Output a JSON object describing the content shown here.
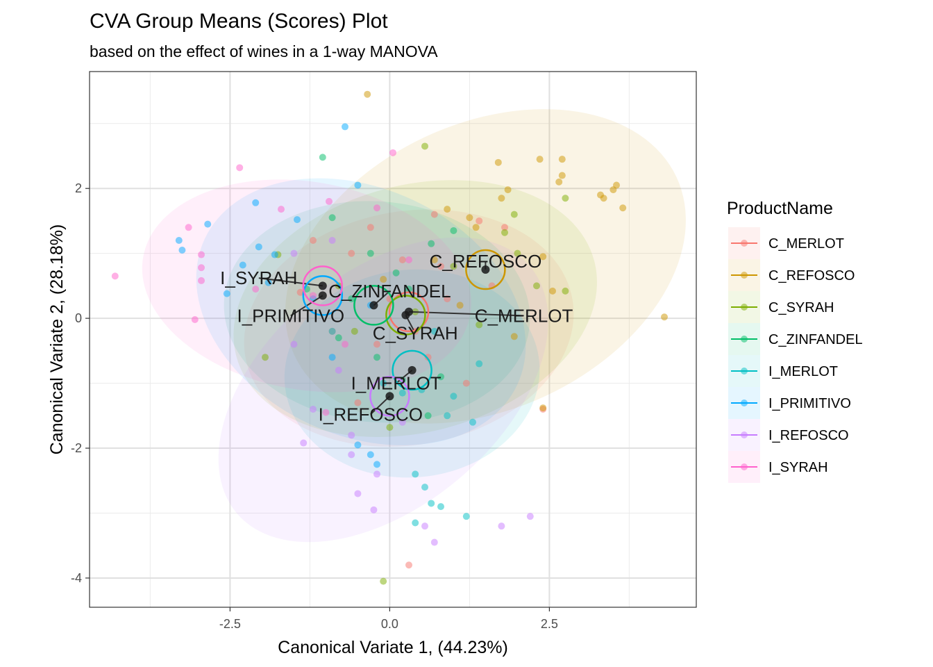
{
  "chart_data": {
    "type": "scatter",
    "title": "CVA Group Means (Scores) Plot",
    "subtitle": "based on the effect of wines in a 1-way MANOVA",
    "xlabel": "Canonical Variate 1, (44.23%)",
    "ylabel": "Canonical Variate 2, (28.18%)",
    "xlim": [
      -4.7,
      4.8
    ],
    "ylim": [
      -4.45,
      3.8
    ],
    "x_ticks": [
      -2.5,
      0.0,
      2.5
    ],
    "x_tick_labels": [
      "-2.5",
      "0.0",
      "2.5"
    ],
    "y_ticks": [
      -4,
      -2,
      0,
      2
    ],
    "y_tick_labels": [
      "-4",
      "-2",
      "0",
      "2"
    ],
    "grid": true,
    "legend_title": "ProductName",
    "legend_position": "right",
    "series": [
      {
        "name": "C_MERLOT",
        "color": "#F8766D",
        "mean": [
          0.3,
          0.1
        ],
        "ellipse": {
          "cx": 0.3,
          "cy": -0.15,
          "rx": 2.6,
          "ry": 1.8,
          "angle": 10
        },
        "points": [
          [
            -1.2,
            1.2
          ],
          [
            -0.6,
            1.0
          ],
          [
            0.2,
            0.9
          ],
          [
            0.8,
            0.8
          ],
          [
            1.4,
            1.5
          ],
          [
            1.8,
            1.4
          ],
          [
            -0.9,
            -0.2
          ],
          [
            -0.2,
            -0.4
          ],
          [
            0.6,
            -0.6
          ],
          [
            1.2,
            -1.0
          ],
          [
            0.3,
            -3.8
          ],
          [
            -0.5,
            -1.3
          ],
          [
            0.9,
            0.3
          ],
          [
            1.6,
            0.5
          ],
          [
            -1.4,
            0.4
          ],
          [
            0.0,
            0.3
          ],
          [
            0.4,
            -0.2
          ],
          [
            2.4,
            -1.4
          ],
          [
            -0.3,
            1.4
          ],
          [
            0.7,
            1.6
          ]
        ]
      },
      {
        "name": "C_REFOSCO",
        "color": "#CD9600",
        "mean": [
          1.5,
          0.75
        ],
        "ellipse": {
          "cx": 1.5,
          "cy": 0.8,
          "rx": 3.3,
          "ry": 2.2,
          "angle": 25
        },
        "points": [
          [
            -0.35,
            3.45
          ],
          [
            1.7,
            2.4
          ],
          [
            2.35,
            2.45
          ],
          [
            2.7,
            2.45
          ],
          [
            2.65,
            2.1
          ],
          [
            2.7,
            2.2
          ],
          [
            1.85,
            1.98
          ],
          [
            3.3,
            1.9
          ],
          [
            3.35,
            1.85
          ],
          [
            3.5,
            1.98
          ],
          [
            3.55,
            2.05
          ],
          [
            3.65,
            1.7
          ],
          [
            1.75,
            1.85
          ],
          [
            1.25,
            1.55
          ],
          [
            0.9,
            1.68
          ],
          [
            1.35,
            1.4
          ],
          [
            2.4,
            0.95
          ],
          [
            2.55,
            0.42
          ],
          [
            4.3,
            0.02
          ],
          [
            1.95,
            -0.28
          ],
          [
            1.1,
            0.2
          ],
          [
            0.7,
            0.9
          ],
          [
            -0.1,
            0.6
          ],
          [
            2.4,
            -1.38
          ]
        ]
      },
      {
        "name": "C_SYRAH",
        "color": "#7CAE00",
        "mean": [
          0.25,
          0.05
        ],
        "ellipse": {
          "cx": 0.4,
          "cy": 0.15,
          "rx": 2.9,
          "ry": 1.9,
          "angle": 15
        },
        "points": [
          [
            0.55,
            2.65
          ],
          [
            2.75,
            1.85
          ],
          [
            1.95,
            1.6
          ],
          [
            1.8,
            1.32
          ],
          [
            2.0,
            1.0
          ],
          [
            2.3,
            0.5
          ],
          [
            2.75,
            0.42
          ],
          [
            1.0,
            0.8
          ],
          [
            -1.75,
            0.98
          ],
          [
            -1.95,
            -0.6
          ],
          [
            -0.1,
            -4.05
          ],
          [
            0.0,
            -1.68
          ],
          [
            -0.55,
            -0.2
          ],
          [
            0.4,
            0.1
          ],
          [
            1.4,
            -0.1
          ],
          [
            -0.8,
            0.5
          ]
        ]
      },
      {
        "name": "C_ZINFANDEL",
        "color": "#00BE67",
        "mean": [
          -0.25,
          0.2
        ],
        "ellipse": {
          "cx": -0.2,
          "cy": 0.1,
          "rx": 2.4,
          "ry": 1.7,
          "angle": -5
        },
        "points": [
          [
            -1.05,
            2.48
          ],
          [
            -0.9,
            1.55
          ],
          [
            -0.3,
            1.0
          ],
          [
            0.1,
            0.7
          ],
          [
            0.65,
            1.15
          ],
          [
            1.0,
            1.35
          ],
          [
            -1.3,
            0.45
          ],
          [
            -0.6,
            0.3
          ],
          [
            0.6,
            -1.5
          ],
          [
            0.8,
            -0.9
          ],
          [
            -0.2,
            -0.6
          ],
          [
            0.3,
            0.45
          ],
          [
            -0.8,
            -0.3
          ],
          [
            0.2,
            -0.95
          ]
        ]
      },
      {
        "name": "I_MERLOT",
        "color": "#00BFC4",
        "mean": [
          0.35,
          -0.8
        ],
        "ellipse": {
          "cx": 0.35,
          "cy": -0.85,
          "rx": 2.0,
          "ry": 1.6,
          "angle": 5
        },
        "points": [
          [
            -0.9,
            -0.2
          ],
          [
            0.2,
            -1.15
          ],
          [
            0.5,
            -1.1
          ],
          [
            0.9,
            -1.5
          ],
          [
            1.3,
            -1.6
          ],
          [
            0.4,
            -2.4
          ],
          [
            0.55,
            -2.6
          ],
          [
            0.65,
            -2.85
          ],
          [
            0.8,
            -2.9
          ],
          [
            1.2,
            -3.05
          ],
          [
            0.4,
            -3.15
          ],
          [
            1.0,
            -1.2
          ],
          [
            -0.1,
            -1.0
          ],
          [
            0.7,
            -0.2
          ],
          [
            1.4,
            -0.7
          ]
        ]
      },
      {
        "name": "I_PRIMITIVO",
        "color": "#00A9FF",
        "mean": [
          -1.05,
          0.35
        ],
        "ellipse": {
          "cx": -0.45,
          "cy": 0.1,
          "rx": 2.7,
          "ry": 1.9,
          "angle": -25
        },
        "points": [
          [
            -0.7,
            2.95
          ],
          [
            -0.5,
            2.05
          ],
          [
            -2.1,
            1.78
          ],
          [
            -2.85,
            1.45
          ],
          [
            -1.45,
            1.52
          ],
          [
            -2.05,
            1.1
          ],
          [
            -1.8,
            0.98
          ],
          [
            -2.3,
            0.82
          ],
          [
            -3.3,
            1.2
          ],
          [
            -3.25,
            1.05
          ],
          [
            -1.9,
            0.55
          ],
          [
            -2.55,
            0.38
          ],
          [
            -1.2,
            0.3
          ],
          [
            -0.5,
            -1.95
          ],
          [
            -0.2,
            -2.25
          ],
          [
            -0.3,
            -2.1
          ],
          [
            -0.9,
            -0.6
          ],
          [
            -0.3,
            0.2
          ]
        ]
      },
      {
        "name": "I_REFOSCO",
        "color": "#C77CFF",
        "mean": [
          0.0,
          -1.2
        ],
        "ellipse": {
          "cx": -0.1,
          "cy": -1.1,
          "rx": 3.0,
          "ry": 1.8,
          "angle": 40
        },
        "points": [
          [
            -0.9,
            1.2
          ],
          [
            -1.5,
            1.0
          ],
          [
            -0.6,
            -1.8
          ],
          [
            -0.5,
            -2.7
          ],
          [
            -0.2,
            -2.4
          ],
          [
            -0.25,
            -2.95
          ],
          [
            -1.35,
            -1.92
          ],
          [
            -0.6,
            -2.1
          ],
          [
            0.55,
            -3.2
          ],
          [
            0.7,
            -3.45
          ],
          [
            1.75,
            -3.2
          ],
          [
            2.2,
            -3.05
          ],
          [
            -1.2,
            -1.4
          ],
          [
            -0.8,
            -0.8
          ],
          [
            0.2,
            -1.6
          ],
          [
            -1.5,
            -0.4
          ]
        ]
      },
      {
        "name": "I_SYRAH",
        "color": "#FF61CC",
        "mean": [
          -1.05,
          0.5
        ],
        "ellipse": {
          "cx": -1.3,
          "cy": 0.5,
          "rx": 2.6,
          "ry": 1.6,
          "angle": -10
        },
        "points": [
          [
            -4.3,
            0.65
          ],
          [
            -3.05,
            -0.02
          ],
          [
            -2.95,
            0.58
          ],
          [
            -2.95,
            0.78
          ],
          [
            -2.95,
            0.98
          ],
          [
            -3.15,
            1.4
          ],
          [
            -2.35,
            2.32
          ],
          [
            -1.7,
            1.68
          ],
          [
            0.05,
            2.55
          ],
          [
            -0.2,
            1.7
          ],
          [
            -0.95,
            1.8
          ],
          [
            -2.1,
            0.45
          ],
          [
            -1.2,
            0.35
          ],
          [
            -0.7,
            -0.4
          ],
          [
            -1.0,
            -1.45
          ],
          [
            0.3,
            0.9
          ]
        ]
      }
    ],
    "mean_labels": [
      {
        "text": "C_REFOSCO",
        "series": "C_REFOSCO",
        "lx": 1.5,
        "ly": 0.88
      },
      {
        "text": "I_SYRAH",
        "series": "I_SYRAH",
        "lx": -2.05,
        "ly": 0.62
      },
      {
        "text": "C_ZINFANDEL",
        "series": "C_ZINFANDEL",
        "lx": 0.0,
        "ly": 0.42
      },
      {
        "text": "I_PRIMITIVO",
        "series": "I_PRIMITIVO",
        "lx": -1.55,
        "ly": 0.04
      },
      {
        "text": "C_MERLOT",
        "series": "C_MERLOT",
        "lx": 2.1,
        "ly": 0.04
      },
      {
        "text": "C_SYRAH",
        "series": "C_SYRAH",
        "lx": 0.4,
        "ly": -0.23
      },
      {
        "text": "I_MERLOT",
        "series": "I_MERLOT",
        "lx": 0.1,
        "ly": -1.0
      },
      {
        "text": "I_REFOSCO",
        "series": "I_REFOSCO",
        "lx": -0.3,
        "ly": -1.48
      }
    ]
  }
}
